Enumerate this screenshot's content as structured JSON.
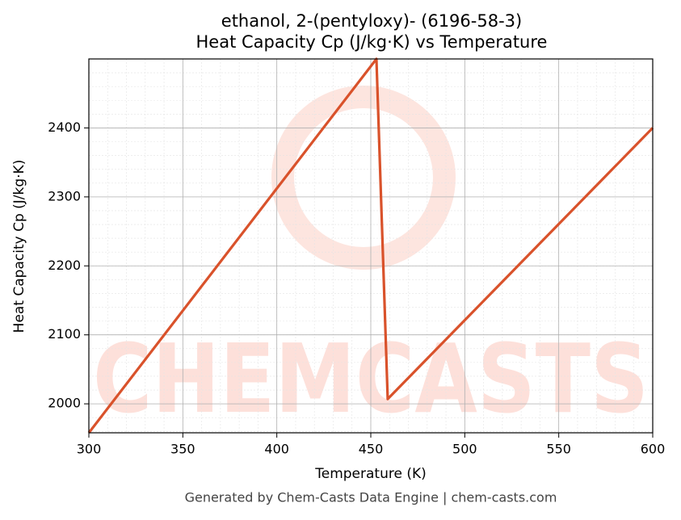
{
  "chart_data": {
    "type": "line",
    "title": "ethanol, 2-(pentyloxy)- (6196-58-3)",
    "subtitle": "Heat Capacity Cp (J/kg·K) vs Temperature",
    "x_label": "Temperature (K)",
    "y_label": "Heat Capacity Cp (J/kg·K)",
    "footer": "Generated by Chem-Casts Data Engine | chem-casts.com",
    "watermark": "CHEMCASTS",
    "x": [
      300,
      453,
      459,
      600
    ],
    "series": [
      {
        "name": "Cp",
        "color": "#d9522b",
        "values": [
          1958,
          2500,
          2007,
          2400
        ]
      }
    ],
    "xlim": [
      300,
      600
    ],
    "xticks": [
      300,
      350,
      400,
      450,
      500,
      550,
      600
    ],
    "ylim": [
      1958,
      2500
    ],
    "yticks": [
      2000,
      2100,
      2200,
      2300,
      2400
    ],
    "grid": true
  }
}
